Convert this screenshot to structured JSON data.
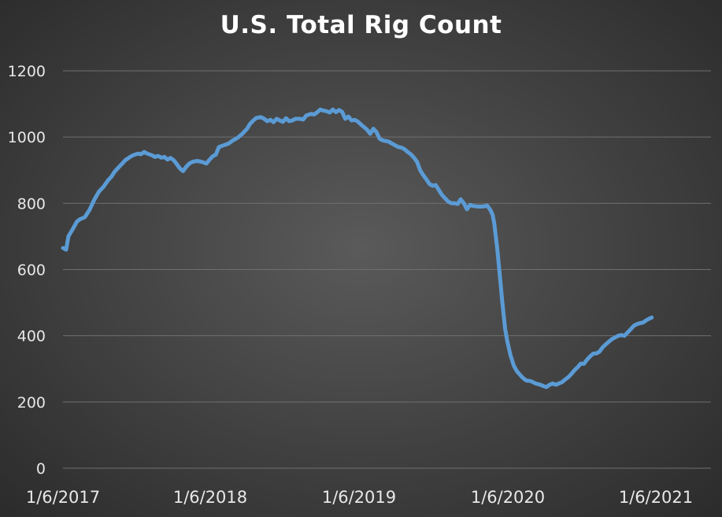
{
  "chart_data": {
    "type": "line",
    "title": "U.S. Total Rig Count",
    "xlabel": "",
    "ylabel": "",
    "ylim": [
      0,
      1200
    ],
    "y_ticks": [
      0,
      200,
      400,
      600,
      800,
      1000,
      1200
    ],
    "x_tick_labels": [
      "1/6/2017",
      "1/6/2018",
      "1/6/2019",
      "1/6/2020",
      "1/6/2021"
    ],
    "grid": true,
    "legend": "none",
    "line_color": "#5b9bd5",
    "series": [
      {
        "values": [
          [
            0,
            665
          ],
          [
            4,
            660
          ],
          [
            7,
            700
          ],
          [
            12,
            720
          ],
          [
            18,
            745
          ],
          [
            22,
            752
          ],
          [
            28,
            758
          ],
          [
            34,
            780
          ],
          [
            40,
            810
          ],
          [
            46,
            835
          ],
          [
            52,
            850
          ],
          [
            58,
            870
          ],
          [
            62,
            880
          ],
          [
            66,
            895
          ],
          [
            70,
            905
          ],
          [
            76,
            920
          ],
          [
            80,
            930
          ],
          [
            86,
            940
          ],
          [
            90,
            945
          ],
          [
            96,
            950
          ],
          [
            100,
            948
          ],
          [
            104,
            955
          ],
          [
            108,
            950
          ],
          [
            114,
            945
          ],
          [
            118,
            940
          ],
          [
            122,
            943
          ],
          [
            126,
            938
          ],
          [
            130,
            940
          ],
          [
            134,
            932
          ],
          [
            138,
            937
          ],
          [
            142,
            930
          ],
          [
            146,
            918
          ],
          [
            150,
            905
          ],
          [
            154,
            897
          ],
          [
            158,
            910
          ],
          [
            162,
            920
          ],
          [
            166,
            925
          ],
          [
            172,
            928
          ],
          [
            178,
            925
          ],
          [
            184,
            920
          ],
          [
            188,
            932
          ],
          [
            192,
            942
          ],
          [
            196,
            947
          ],
          [
            200,
            970
          ],
          [
            206,
            975
          ],
          [
            212,
            980
          ],
          [
            218,
            990
          ],
          [
            224,
            998
          ],
          [
            230,
            1010
          ],
          [
            236,
            1025
          ],
          [
            240,
            1040
          ],
          [
            244,
            1050
          ],
          [
            248,
            1058
          ],
          [
            254,
            1060
          ],
          [
            258,
            1055
          ],
          [
            262,
            1048
          ],
          [
            266,
            1052
          ],
          [
            270,
            1045
          ],
          [
            274,
            1055
          ],
          [
            278,
            1050
          ],
          [
            282,
            1046
          ],
          [
            286,
            1057
          ],
          [
            290,
            1048
          ],
          [
            294,
            1050
          ],
          [
            298,
            1055
          ],
          [
            304,
            1055
          ],
          [
            308,
            1053
          ],
          [
            312,
            1065
          ],
          [
            318,
            1070
          ],
          [
            322,
            1068
          ],
          [
            326,
            1075
          ],
          [
            330,
            1083
          ],
          [
            334,
            1080
          ],
          [
            338,
            1078
          ],
          [
            342,
            1074
          ],
          [
            346,
            1083
          ],
          [
            350,
            1075
          ],
          [
            354,
            1082
          ],
          [
            358,
            1076
          ],
          [
            362,
            1055
          ],
          [
            366,
            1062
          ],
          [
            370,
            1050
          ],
          [
            374,
            1052
          ],
          [
            378,
            1047
          ],
          [
            382,
            1038
          ],
          [
            386,
            1030
          ],
          [
            390,
            1022
          ],
          [
            394,
            1010
          ],
          [
            398,
            1025
          ],
          [
            402,
            1015
          ],
          [
            406,
            995
          ],
          [
            410,
            990
          ],
          [
            414,
            988
          ],
          [
            418,
            986
          ],
          [
            422,
            980
          ],
          [
            426,
            975
          ],
          [
            430,
            970
          ],
          [
            434,
            968
          ],
          [
            438,
            963
          ],
          [
            442,
            955
          ],
          [
            446,
            948
          ],
          [
            450,
            938
          ],
          [
            454,
            925
          ],
          [
            458,
            900
          ],
          [
            462,
            885
          ],
          [
            466,
            872
          ],
          [
            470,
            858
          ],
          [
            474,
            853
          ],
          [
            478,
            855
          ],
          [
            482,
            840
          ],
          [
            486,
            825
          ],
          [
            490,
            815
          ],
          [
            494,
            805
          ],
          [
            498,
            800
          ],
          [
            502,
            800
          ],
          [
            506,
            798
          ],
          [
            510,
            812
          ],
          [
            514,
            800
          ],
          [
            518,
            782
          ],
          [
            522,
            795
          ],
          [
            526,
            792
          ],
          [
            532,
            790
          ],
          [
            538,
            790
          ],
          [
            544,
            793
          ],
          [
            548,
            780
          ],
          [
            551,
            765
          ],
          [
            553,
            740
          ],
          [
            555,
            700
          ],
          [
            557,
            660
          ],
          [
            559,
            610
          ],
          [
            561,
            560
          ],
          [
            563,
            510
          ],
          [
            565,
            465
          ],
          [
            567,
            420
          ],
          [
            570,
            380
          ],
          [
            574,
            340
          ],
          [
            578,
            310
          ],
          [
            582,
            293
          ],
          [
            586,
            282
          ],
          [
            590,
            272
          ],
          [
            594,
            265
          ],
          [
            600,
            263
          ],
          [
            606,
            256
          ],
          [
            612,
            252
          ],
          [
            616,
            248
          ],
          [
            620,
            245
          ],
          [
            624,
            252
          ],
          [
            628,
            256
          ],
          [
            632,
            252
          ],
          [
            636,
            256
          ],
          [
            640,
            260
          ],
          [
            644,
            268
          ],
          [
            648,
            275
          ],
          [
            652,
            285
          ],
          [
            656,
            296
          ],
          [
            660,
            305
          ],
          [
            664,
            316
          ],
          [
            668,
            315
          ],
          [
            672,
            328
          ],
          [
            676,
            338
          ],
          [
            680,
            346
          ],
          [
            684,
            347
          ],
          [
            688,
            352
          ],
          [
            692,
            365
          ],
          [
            696,
            374
          ],
          [
            700,
            382
          ],
          [
            704,
            390
          ],
          [
            708,
            395
          ],
          [
            712,
            400
          ],
          [
            716,
            402
          ],
          [
            720,
            400
          ],
          [
            724,
            410
          ],
          [
            728,
            420
          ],
          [
            732,
            430
          ],
          [
            736,
            435
          ],
          [
            740,
            438
          ],
          [
            744,
            440
          ],
          [
            748,
            447
          ],
          [
            752,
            452
          ],
          [
            755,
            455
          ]
        ]
      }
    ]
  }
}
